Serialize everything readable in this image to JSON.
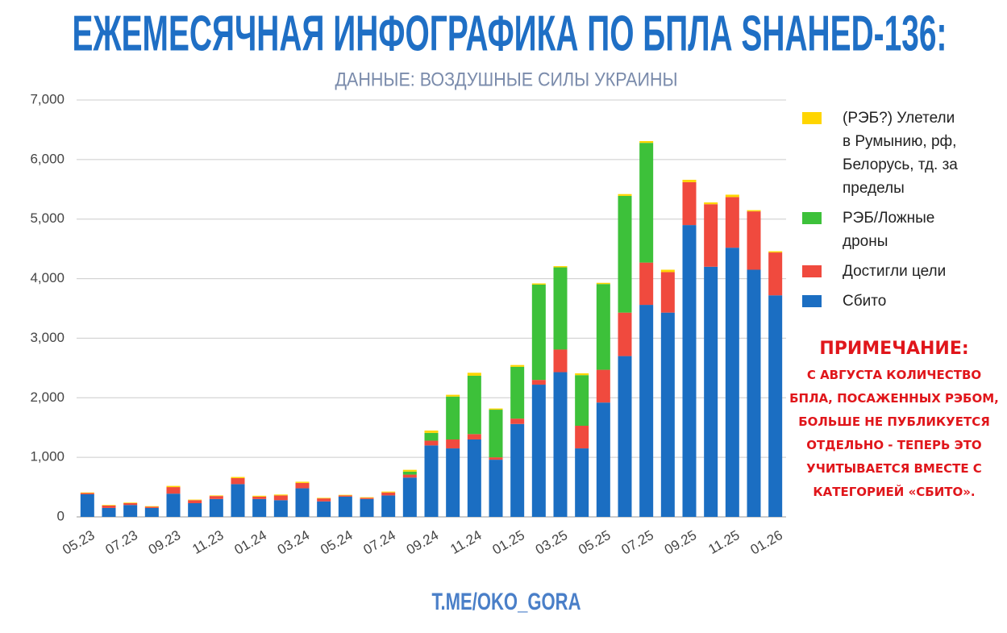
{
  "chart_data": {
    "type": "bar",
    "stacked": true,
    "title": "ЕЖЕМЕСЯЧНАЯ ИНФОГРАФИКА ПО БПЛА SHAHED-136:",
    "subtitle": "ДАННЫЕ: ВОЗДУШНЫЕ СИЛЫ УКРАИНЫ",
    "footer": "T.ME/OKO_GORA",
    "note_title": "ПРИМЕЧАНИЕ:",
    "note_text": "С АВГУСТА КОЛИЧЕСТВО БПЛА, ПОСАЖЕННЫХ РЭБОМ, БОЛЬШЕ НЕ ПУБЛИКУЕТСЯ ОТДЕЛЬНО - ТЕПЕРЬ ЭТО УЧИТЫВАЕТСЯ ВМЕСТЕ С КАТЕГОРИЕЙ «СБИТО».",
    "categories": [
      "05.23",
      null,
      "07.23",
      null,
      "09.23",
      null,
      "11.23",
      null,
      "01.24",
      null,
      "03.24",
      null,
      "05.24",
      null,
      "07.24",
      null,
      "09.24",
      null,
      "11.24",
      null,
      "01.25",
      null,
      "03.25",
      null,
      "05.25",
      null,
      "07.25",
      null,
      "09.25",
      null,
      "11.25",
      null,
      "01.26"
    ],
    "series": [
      {
        "name": "Сбито",
        "color": "#1b6ec2",
        "values": [
          380,
          150,
          200,
          150,
          390,
          230,
          300,
          550,
          300,
          280,
          480,
          260,
          340,
          300,
          360,
          660,
          1200,
          1150,
          1300,
          960,
          1560,
          2220,
          2430,
          1150,
          1920,
          2700,
          3560,
          3430,
          4900,
          4200,
          4520,
          4150,
          3720
        ]
      },
      {
        "name": "Достигли цели",
        "color": "#f04a3e",
        "values": [
          20,
          40,
          30,
          20,
          110,
          50,
          50,
          100,
          40,
          80,
          90,
          50,
          20,
          20,
          50,
          50,
          80,
          150,
          90,
          40,
          90,
          80,
          380,
          380,
          550,
          730,
          710,
          680,
          720,
          1050,
          850,
          980,
          720
        ]
      },
      {
        "name": "РЭБ/Ложные дроны",
        "color": "#3dc13a",
        "values": [
          0,
          0,
          0,
          0,
          0,
          0,
          0,
          0,
          0,
          0,
          0,
          0,
          0,
          0,
          0,
          50,
          130,
          720,
          980,
          800,
          870,
          1600,
          1380,
          850,
          1440,
          1960,
          2010,
          0,
          0,
          0,
          0,
          0,
          0
        ]
      },
      {
        "name": "(РЭБ?) Улетели в Румынию, рф, Белорусь, тд. за пределы",
        "color": "#ffd500",
        "values": [
          10,
          10,
          10,
          10,
          20,
          10,
          10,
          20,
          15,
          15,
          20,
          10,
          10,
          10,
          15,
          30,
          40,
          30,
          50,
          20,
          30,
          20,
          20,
          30,
          20,
          30,
          30,
          40,
          40,
          30,
          40,
          20,
          20
        ]
      }
    ],
    "ylim": [
      0,
      7000
    ],
    "yticks": [
      0,
      {
        "value": 1000,
        "label": "1,000"
      },
      {
        "value": 2000,
        "label": "2,000"
      },
      {
        "value": 3000,
        "label": "3,000"
      },
      {
        "value": 4000,
        "label": "4,000"
      },
      {
        "value": 5000,
        "label": "5,000"
      },
      {
        "value": 6000,
        "label": "6,000"
      },
      {
        "value": 7000,
        "label": "7,000"
      }
    ],
    "grid": true
  }
}
